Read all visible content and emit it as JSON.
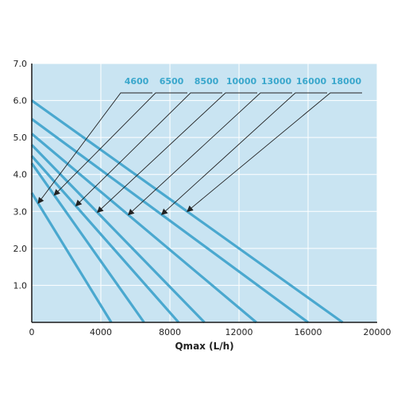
{
  "chart_data": {
    "type": "line",
    "title": "",
    "xlabel": "Qmax (L/h)",
    "ylabel": "",
    "xlim": [
      0,
      20000
    ],
    "ylim": [
      0,
      7.0
    ],
    "x_ticks": [
      0,
      4000,
      8000,
      12000,
      16000,
      20000
    ],
    "x_tick_labels": [
      "0",
      "4000",
      "8000",
      "12000",
      "16000",
      "20000"
    ],
    "y_ticks": [
      1.0,
      2.0,
      3.0,
      4.0,
      5.0,
      6.0,
      7.0
    ],
    "y_tick_labels": [
      "1.0",
      "2.0",
      "3.0",
      "4.0",
      "5.0",
      "6.0",
      "7.0"
    ],
    "grid": true,
    "colors": {
      "plot_background": "#c9e4f2",
      "grid": "#ffffff",
      "line": "#4aa8cf",
      "label": "#3aa7cc",
      "axis": "#1a1a1a"
    },
    "series": [
      {
        "name": "4600",
        "x": [
          0,
          4600
        ],
        "y": [
          3.5,
          0
        ]
      },
      {
        "name": "6500",
        "x": [
          0,
          6500
        ],
        "y": [
          4.3,
          0
        ]
      },
      {
        "name": "8500",
        "x": [
          0,
          8500
        ],
        "y": [
          4.5,
          0
        ]
      },
      {
        "name": "10000",
        "x": [
          0,
          10000
        ],
        "y": [
          4.8,
          0
        ]
      },
      {
        "name": "13000",
        "x": [
          0,
          13000
        ],
        "y": [
          5.1,
          0
        ]
      },
      {
        "name": "16000",
        "x": [
          0,
          16000
        ],
        "y": [
          5.5,
          0
        ]
      },
      {
        "name": "18000",
        "x": [
          0,
          18000
        ],
        "y": [
          6.0,
          0
        ]
      }
    ]
  }
}
